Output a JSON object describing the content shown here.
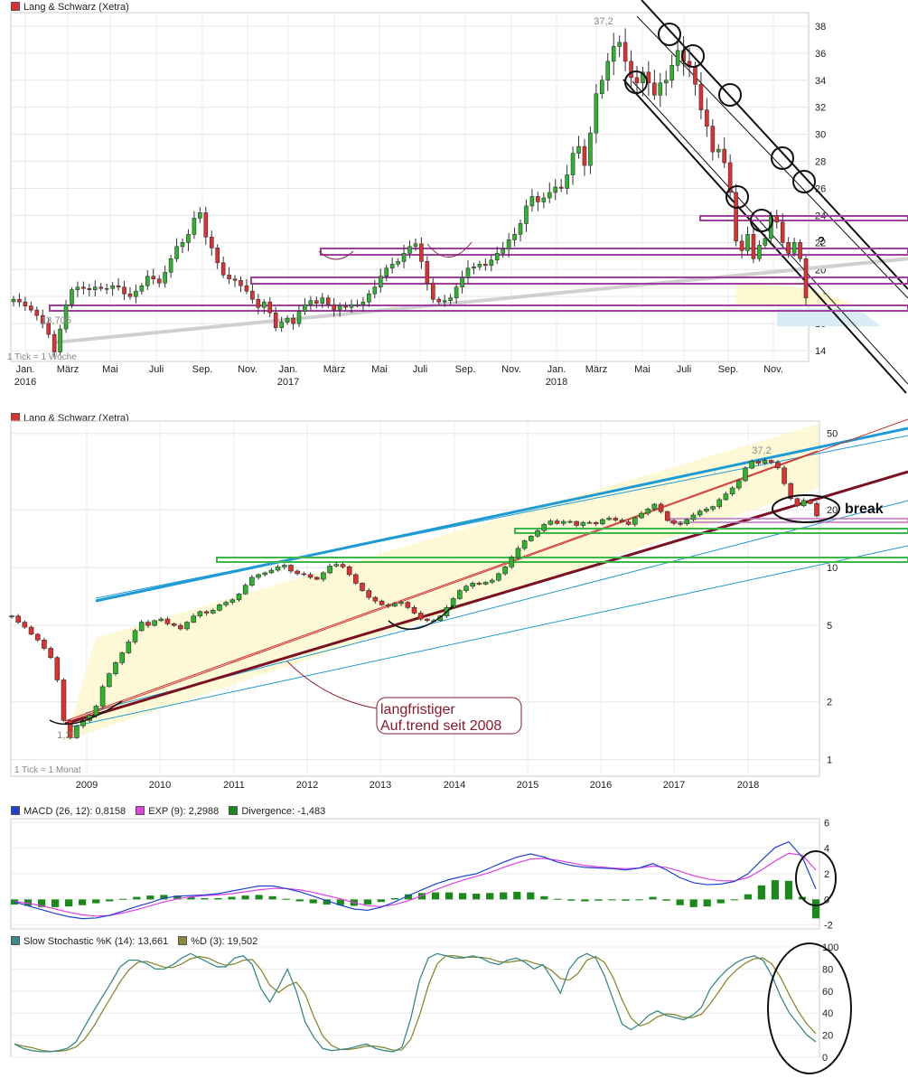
{
  "colors": {
    "up": "#2db52d",
    "down": "#e03030",
    "macd": "#2040d0",
    "exp": "#e040e0",
    "div": "#1a8a1a",
    "stochK": "#3a8a8a",
    "stochD": "#8a8a30",
    "level": "#a040a0",
    "annot": "#8b1a2b",
    "channel": "#1e9ad6",
    "green": "#3cb84a"
  },
  "chart_data": [
    {
      "type": "candlestick",
      "title": "Lang & Schwarz (Xetra)",
      "note": "1 Tick = 1 Woche",
      "x_months": [
        "Jan.",
        "März",
        "Mai",
        "Juli",
        "Sep.",
        "Nov.",
        "Jan.",
        "März",
        "Mai",
        "Juli",
        "Sep.",
        "Nov.",
        "Jan.",
        "März",
        "Mai",
        "Juli",
        "Sep.",
        "Nov."
      ],
      "x_years": [
        "2016",
        "2017",
        "2018"
      ],
      "yticks": [
        "38",
        "36",
        "34",
        "32",
        "30",
        "28",
        "26",
        "24",
        "22",
        "20",
        "18",
        "16",
        "14"
      ],
      "labels": {
        "high": "37,2",
        "low": "13,705",
        "question": "?"
      },
      "close_weekly": [
        17.8,
        17.6,
        17.3,
        17.0,
        16.6,
        16.0,
        15.2,
        13.9,
        15.6,
        17.4,
        18.5,
        18.7,
        18.6,
        18.5,
        18.7,
        18.6,
        18.6,
        18.8,
        18.7,
        18.2,
        18.0,
        18.4,
        18.8,
        19.5,
        19.3,
        19.0,
        19.8,
        20.8,
        21.7,
        22.0,
        22.6,
        23.8,
        24.2,
        22.4,
        21.6,
        20.5,
        19.6,
        19.3,
        19.2,
        18.8,
        18.4,
        17.8,
        17.2,
        17.6,
        16.8,
        15.7,
        16.1,
        16.4,
        16.0,
        16.9,
        17.4,
        17.7,
        17.5,
        17.9,
        17.4,
        17.0,
        17.3,
        17.2,
        17.4,
        17.4,
        17.6,
        18.2,
        18.7,
        19.5,
        20.1,
        20.4,
        20.6,
        21.2,
        21.7,
        21.9,
        20.6,
        19.0,
        17.8,
        17.6,
        17.7,
        17.9,
        18.7,
        19.4,
        20.1,
        20.2,
        20.4,
        20.3,
        20.7,
        21.2,
        21.5,
        22.2,
        22.6,
        23.4,
        24.7,
        25.4,
        25.0,
        25.3,
        25.7,
        26.1,
        26.0,
        27.0,
        28.6,
        29.1,
        27.7,
        30.1,
        33.0,
        34.0,
        35.4,
        36.5,
        36.8,
        35.4,
        34.2,
        33.8,
        34.6,
        33.8,
        32.9,
        33.8,
        34.0,
        35.1,
        36.2,
        35.4,
        35.0,
        33.7,
        31.8,
        30.6,
        28.7,
        28.9,
        27.9,
        25.7,
        22.1,
        21.4,
        22.6,
        20.8,
        21.8,
        22.3,
        24.0,
        23.5,
        22.0,
        21.2,
        22.0,
        20.8,
        17.9
      ],
      "levels": [
        17.4,
        17.1,
        15.8,
        14.6
      ],
      "trend": [
        [
          0,
          14.6
        ],
        [
          135,
          20.8
        ]
      ]
    },
    {
      "type": "candlestick",
      "title": "Lang & Schwarz (Xetra)",
      "note": "1 Tick = 1 Monat",
      "x_years": [
        "2009",
        "2010",
        "2011",
        "2012",
        "2013",
        "2014",
        "2015",
        "2016",
        "2017",
        "2018"
      ],
      "yticks": [
        "50",
        "20",
        "10",
        "5",
        "2",
        "1"
      ],
      "y_scale": "log",
      "labels": {
        "high": "37,2",
        "low": "1,25",
        "break": "break",
        "annotation_line1": "langfristiger",
        "annotation_line2": "Auf.trend seit 2008"
      },
      "close_monthly": [
        5.6,
        5.2,
        4.9,
        4.5,
        4.2,
        3.8,
        3.4,
        2.6,
        1.6,
        1.3,
        1.5,
        1.6,
        1.7,
        1.9,
        2.4,
        2.8,
        3.2,
        3.6,
        4.1,
        4.7,
        5.2,
        5.0,
        5.3,
        5.4,
        5.1,
        5.0,
        4.8,
        5.2,
        5.6,
        5.9,
        5.8,
        6.0,
        6.4,
        6.6,
        6.8,
        7.3,
        8.1,
        8.9,
        9.2,
        9.4,
        9.7,
        10.1,
        10.3,
        9.6,
        9.3,
        9.2,
        8.9,
        8.7,
        9.4,
        10.2,
        10.4,
        10.1,
        9.2,
        8.3,
        7.6,
        7.0,
        6.7,
        6.4,
        6.3,
        6.5,
        6.6,
        6.2,
        5.8,
        5.4,
        5.3,
        5.3,
        5.6,
        6.2,
        6.9,
        7.6,
        8.0,
        8.3,
        8.2,
        8.4,
        8.6,
        9.3,
        10.1,
        11.3,
        12.6,
        13.8,
        14.6,
        15.6,
        16.8,
        17.5,
        17.0,
        17.4,
        17.4,
        16.6,
        17.2,
        17.2,
        16.9,
        17.8,
        18.1,
        17.7,
        17.3,
        16.8,
        18.2,
        19.2,
        20.2,
        21.4,
        19.6,
        17.6,
        17.0,
        16.9,
        17.8,
        18.8,
        19.7,
        20.2,
        20.8,
        22.6,
        24.2,
        26.0,
        28.4,
        33.0,
        35.8,
        35.0,
        36.2,
        35.4,
        33.1,
        27.4,
        22.9,
        21.0,
        22.4,
        21.6,
        18.6
      ],
      "levels": [
        17.4,
        15.2,
        10.3,
        17.0
      ]
    },
    {
      "type": "line",
      "title": "MACD",
      "legend": [
        "MACD (26, 12): 0,8158",
        "EXP (9): 2,2988",
        "Divergence: -1,483"
      ],
      "yticks": [
        "6",
        "4",
        "2",
        "0",
        "-2"
      ],
      "ylim": [
        -2.3,
        6.3
      ],
      "macd": [
        -0.2,
        -0.5,
        -0.8,
        -1.1,
        -1.35,
        -1.5,
        -1.45,
        -1.25,
        -0.9,
        -0.55,
        -0.25,
        0.1,
        0.25,
        0.3,
        0.35,
        0.45,
        0.65,
        0.85,
        1.05,
        1.05,
        0.85,
        0.6,
        0.25,
        -0.1,
        -0.45,
        -0.75,
        -0.85,
        -0.6,
        -0.2,
        0.3,
        0.75,
        1.2,
        1.55,
        1.8,
        2.0,
        2.45,
        2.9,
        3.3,
        3.55,
        3.3,
        2.9,
        2.65,
        2.5,
        2.45,
        2.4,
        2.3,
        2.45,
        2.8,
        2.3,
        1.7,
        1.3,
        1.15,
        1.2,
        1.4,
        2.0,
        3.05,
        4.05,
        4.5,
        3.3,
        0.82
      ],
      "exp": [
        -0.15,
        -0.3,
        -0.5,
        -0.75,
        -1.0,
        -1.2,
        -1.3,
        -1.25,
        -1.05,
        -0.8,
        -0.5,
        -0.2,
        0.05,
        0.2,
        0.3,
        0.35,
        0.45,
        0.6,
        0.75,
        0.85,
        0.85,
        0.75,
        0.55,
        0.3,
        0.05,
        -0.25,
        -0.5,
        -0.55,
        -0.4,
        -0.1,
        0.3,
        0.75,
        1.15,
        1.5,
        1.8,
        2.1,
        2.5,
        2.85,
        3.15,
        3.2,
        3.05,
        2.85,
        2.65,
        2.55,
        2.45,
        2.4,
        2.45,
        2.6,
        2.5,
        2.2,
        1.85,
        1.6,
        1.45,
        1.45,
        1.7,
        2.3,
        3.0,
        3.6,
        3.45,
        2.3
      ],
      "divergence": [
        -0.4,
        -0.5,
        -0.6,
        -0.6,
        -0.55,
        -0.45,
        -0.3,
        -0.15,
        0.05,
        0.2,
        0.3,
        0.35,
        0.3,
        0.2,
        0.1,
        0.1,
        0.2,
        0.3,
        0.35,
        0.25,
        0.05,
        -0.15,
        -0.3,
        -0.4,
        -0.45,
        -0.5,
        -0.4,
        -0.2,
        0.1,
        0.4,
        0.5,
        0.55,
        0.55,
        0.5,
        0.45,
        0.5,
        0.55,
        0.6,
        0.55,
        0.25,
        0.05,
        -0.1,
        -0.15,
        -0.1,
        -0.05,
        -0.1,
        0.0,
        0.2,
        -0.1,
        -0.45,
        -0.6,
        -0.55,
        -0.3,
        0.0,
        0.4,
        1.1,
        1.5,
        1.45,
        0.2,
        -1.48
      ]
    },
    {
      "type": "line",
      "title": "Slow Stochastic",
      "legend": [
        "Slow Stochastic %K (14): 13,661",
        "%D (3): 19,502"
      ],
      "yticks": [
        "100",
        "80",
        "60",
        "40",
        "20",
        "0"
      ],
      "ylim": [
        0,
        100
      ],
      "k": [
        12,
        8,
        6,
        5,
        5,
        6,
        8,
        14,
        28,
        42,
        55,
        68,
        82,
        88,
        88,
        85,
        80,
        80,
        84,
        90,
        94,
        90,
        86,
        82,
        82,
        90,
        92,
        84,
        62,
        50,
        64,
        80,
        60,
        32,
        18,
        8,
        6,
        7,
        8,
        10,
        12,
        8,
        6,
        5,
        9,
        35,
        70,
        90,
        94,
        92,
        90,
        90,
        92,
        90,
        86,
        84,
        88,
        90,
        86,
        80,
        84,
        72,
        58,
        80,
        90,
        94,
        90,
        74,
        52,
        30,
        25,
        30,
        38,
        42,
        38,
        36,
        34,
        38,
        45,
        62,
        72,
        80,
        86,
        90,
        92,
        88,
        74,
        55,
        40,
        30,
        20,
        14
      ]
    }
  ]
}
